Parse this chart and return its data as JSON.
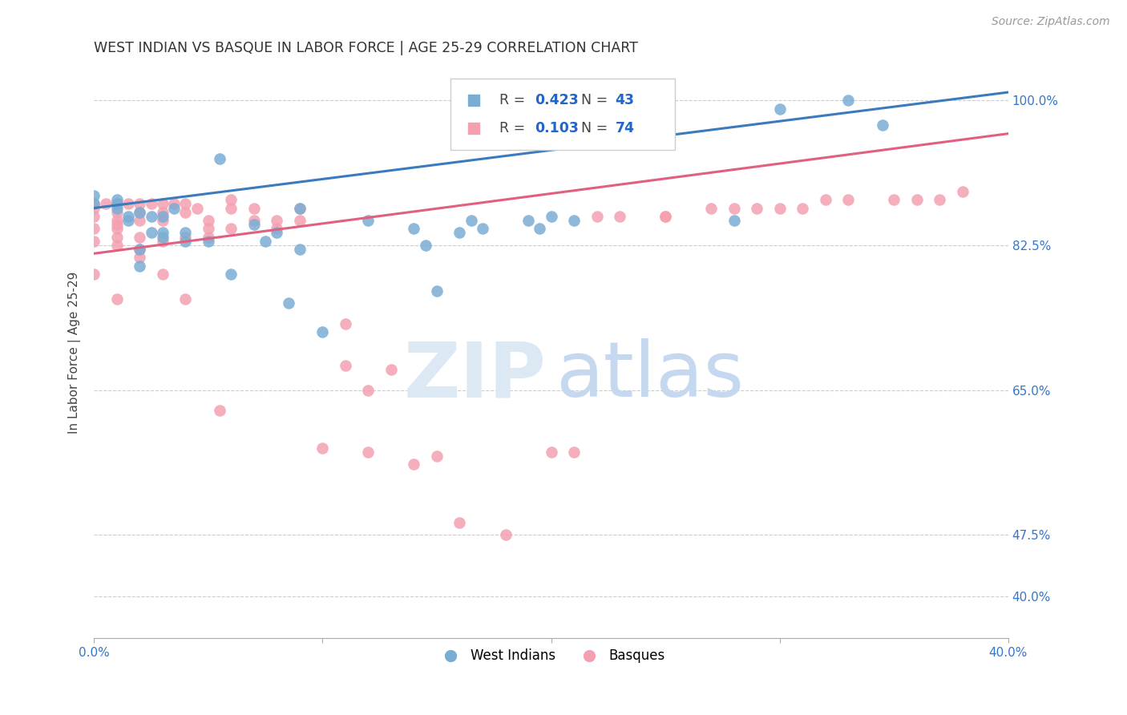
{
  "title": "WEST INDIAN VS BASQUE IN LABOR FORCE | AGE 25-29 CORRELATION CHART",
  "source": "Source: ZipAtlas.com",
  "ylabel": "In Labor Force | Age 25-29",
  "x_min": 0.0,
  "x_max": 0.4,
  "y_min": 0.35,
  "y_max": 1.04,
  "legend_blue_label": "West Indians",
  "legend_pink_label": "Basques",
  "blue_color": "#7aadd4",
  "pink_color": "#f4a0b0",
  "blue_line_color": "#3a7bbf",
  "pink_line_color": "#e06080",
  "blue_R": 0.423,
  "blue_N": 43,
  "pink_R": 0.103,
  "pink_N": 74,
  "blue_x": [
    0.0,
    0.0,
    0.01,
    0.01,
    0.01,
    0.015,
    0.015,
    0.02,
    0.02,
    0.02,
    0.025,
    0.025,
    0.03,
    0.03,
    0.03,
    0.035,
    0.04,
    0.04,
    0.05,
    0.055,
    0.06,
    0.07,
    0.075,
    0.08,
    0.085,
    0.09,
    0.09,
    0.1,
    0.12,
    0.14,
    0.145,
    0.15,
    0.16,
    0.165,
    0.17,
    0.19,
    0.195,
    0.2,
    0.21,
    0.28,
    0.3,
    0.33,
    0.345
  ],
  "blue_y": [
    0.875,
    0.885,
    0.875,
    0.87,
    0.88,
    0.86,
    0.855,
    0.865,
    0.82,
    0.8,
    0.86,
    0.84,
    0.86,
    0.84,
    0.835,
    0.87,
    0.84,
    0.83,
    0.83,
    0.93,
    0.79,
    0.85,
    0.83,
    0.84,
    0.755,
    0.87,
    0.82,
    0.72,
    0.855,
    0.845,
    0.825,
    0.77,
    0.84,
    0.855,
    0.845,
    0.855,
    0.845,
    0.86,
    0.855,
    0.855,
    0.99,
    1.0,
    0.97
  ],
  "pink_x": [
    0.0,
    0.0,
    0.0,
    0.0,
    0.0,
    0.0,
    0.005,
    0.01,
    0.01,
    0.01,
    0.01,
    0.01,
    0.01,
    0.01,
    0.01,
    0.015,
    0.02,
    0.02,
    0.02,
    0.02,
    0.02,
    0.02,
    0.025,
    0.03,
    0.03,
    0.03,
    0.03,
    0.03,
    0.035,
    0.04,
    0.04,
    0.04,
    0.04,
    0.045,
    0.05,
    0.05,
    0.05,
    0.055,
    0.06,
    0.06,
    0.06,
    0.07,
    0.07,
    0.08,
    0.08,
    0.09,
    0.09,
    0.1,
    0.11,
    0.11,
    0.12,
    0.12,
    0.13,
    0.14,
    0.15,
    0.16,
    0.18,
    0.2,
    0.21,
    0.22,
    0.23,
    0.25,
    0.25,
    0.27,
    0.28,
    0.29,
    0.3,
    0.31,
    0.32,
    0.33,
    0.35,
    0.36,
    0.37,
    0.38
  ],
  "pink_y": [
    0.875,
    0.87,
    0.86,
    0.845,
    0.83,
    0.79,
    0.875,
    0.875,
    0.865,
    0.855,
    0.85,
    0.845,
    0.835,
    0.825,
    0.76,
    0.875,
    0.875,
    0.865,
    0.855,
    0.835,
    0.82,
    0.81,
    0.875,
    0.875,
    0.865,
    0.855,
    0.83,
    0.79,
    0.875,
    0.875,
    0.865,
    0.835,
    0.76,
    0.87,
    0.855,
    0.845,
    0.835,
    0.625,
    0.88,
    0.87,
    0.845,
    0.87,
    0.855,
    0.855,
    0.845,
    0.87,
    0.855,
    0.58,
    0.73,
    0.68,
    0.65,
    0.575,
    0.675,
    0.56,
    0.57,
    0.49,
    0.475,
    0.575,
    0.575,
    0.86,
    0.86,
    0.86,
    0.86,
    0.87,
    0.87,
    0.87,
    0.87,
    0.87,
    0.88,
    0.88,
    0.88,
    0.88,
    0.88,
    0.89
  ]
}
